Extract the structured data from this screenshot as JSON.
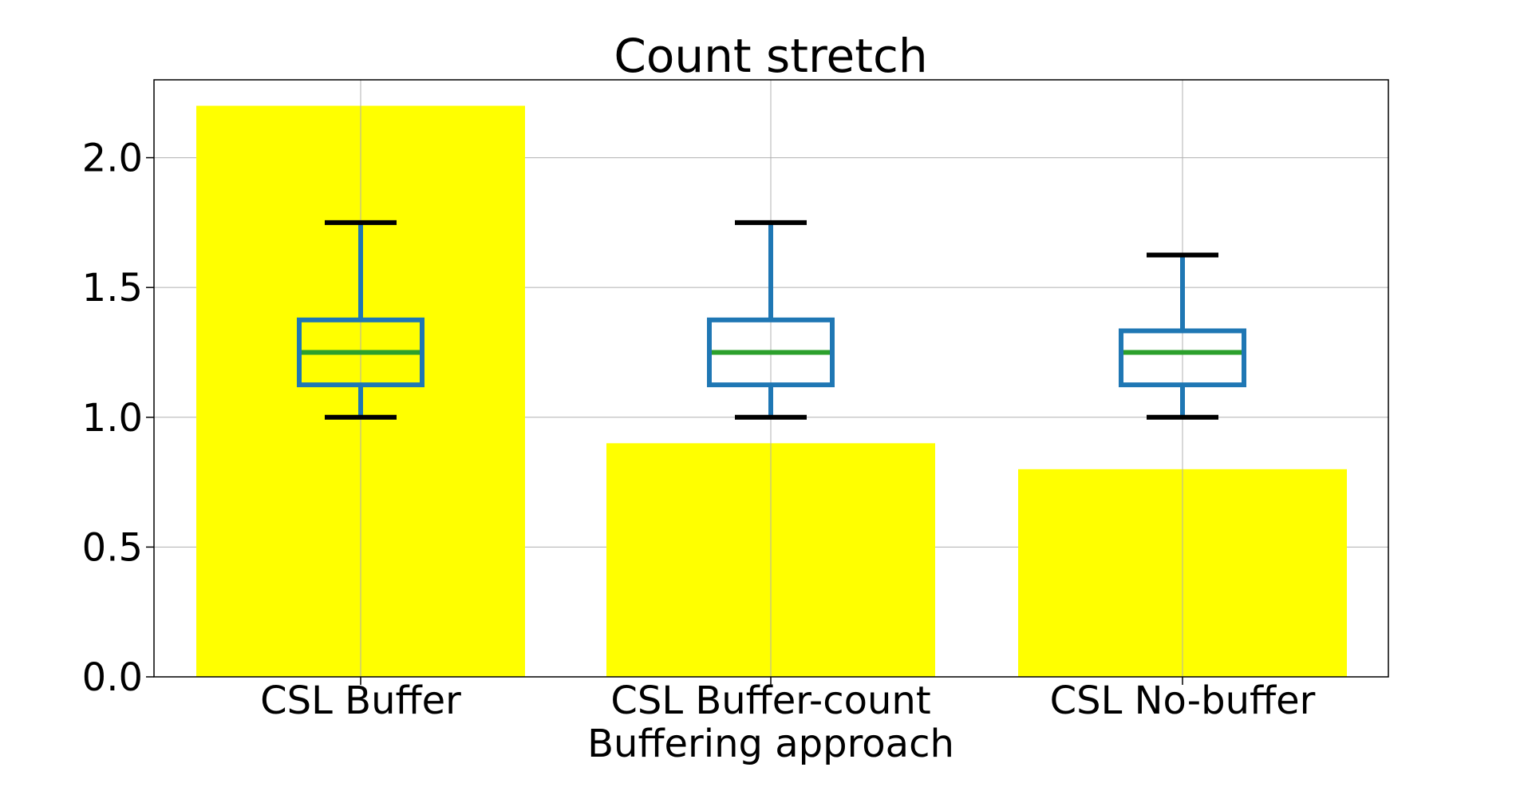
{
  "chart_data": {
    "type": "bar",
    "title": "Count stretch",
    "xlabel": "Buffering approach",
    "ylabel": "",
    "ylim": [
      0,
      2.3
    ],
    "yticks": [
      "0.0",
      "0.5",
      "1.0",
      "1.5",
      "2.0"
    ],
    "ytick_values": [
      0.0,
      0.5,
      1.0,
      1.5,
      2.0
    ],
    "grid": true,
    "categories": [
      "CSL Buffer",
      "CSL Buffer-count",
      "CSL No-buffer"
    ],
    "bar_values": [
      2.2,
      0.9,
      0.8
    ],
    "boxplots": [
      {
        "whisker_low": 1.0,
        "q1": 1.125,
        "median": 1.25,
        "q3": 1.375,
        "whisker_high": 1.75
      },
      {
        "whisker_low": 1.0,
        "q1": 1.125,
        "median": 1.25,
        "q3": 1.375,
        "whisker_high": 1.75
      },
      {
        "whisker_low": 1.0,
        "q1": 1.125,
        "median": 1.25,
        "q3": 1.333,
        "whisker_high": 1.625
      }
    ],
    "colors": {
      "bar": "#ffff00",
      "box": "#1f77b4",
      "median": "#2ca02c",
      "cap": "#000000",
      "grid": "#b0b0b0"
    }
  }
}
